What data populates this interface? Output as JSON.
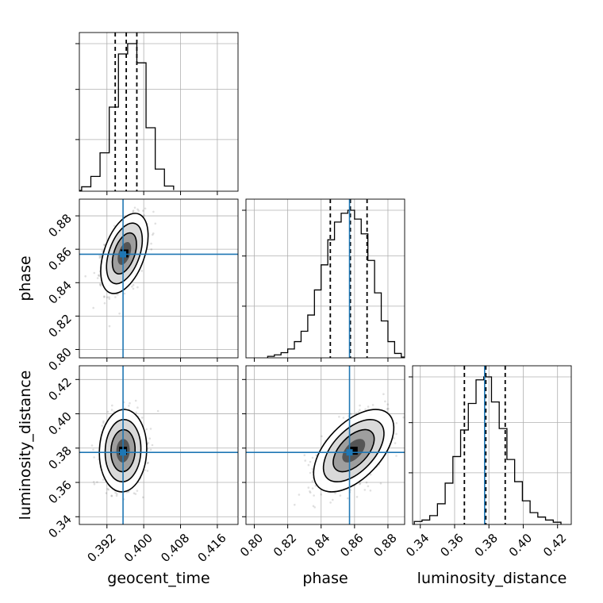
{
  "chart_data": {
    "type": "corner",
    "grid": true,
    "truth_color": "#1f77b4",
    "parameters": [
      {
        "name": "geocent_time",
        "label": "geocent_time",
        "range": [
          0.386,
          0.4205
        ],
        "ticks": [
          0.392,
          0.4,
          0.408,
          0.416
        ],
        "tick_labels": [
          "0.392",
          "0.400",
          "0.408",
          "0.416"
        ],
        "truth": 0.3955,
        "quantiles": [
          0.3938,
          0.3962,
          0.3985
        ],
        "hist_bins": [
          0.3845,
          0.3865,
          0.3885,
          0.3905,
          0.3925,
          0.3945,
          0.3965,
          0.3985,
          0.4005,
          0.4025,
          0.4045,
          0.4065
        ],
        "hist_counts": [
          0.005,
          0.03,
          0.1,
          0.26,
          0.57,
          0.93,
          1.0,
          0.87,
          0.43,
          0.15,
          0.035,
          0.008
        ]
      },
      {
        "name": "phase",
        "label": "phase",
        "range": [
          0.795,
          0.89
        ],
        "ticks": [
          0.8,
          0.82,
          0.84,
          0.86,
          0.88
        ],
        "tick_labels": [
          "0.80",
          "0.82",
          "0.84",
          "0.86",
          "0.88"
        ],
        "truth": 0.857,
        "quantiles": [
          0.8455,
          0.8575,
          0.8675
        ],
        "hist_bins": [
          0.808,
          0.812,
          0.816,
          0.82,
          0.824,
          0.828,
          0.832,
          0.836,
          0.84,
          0.844,
          0.848,
          0.852,
          0.856,
          0.86,
          0.864,
          0.868,
          0.872,
          0.876,
          0.88,
          0.884,
          0.888,
          0.892
        ],
        "hist_counts": [
          0.01,
          0.02,
          0.035,
          0.06,
          0.11,
          0.18,
          0.29,
          0.46,
          0.63,
          0.8,
          0.92,
          0.98,
          1.0,
          0.94,
          0.84,
          0.66,
          0.44,
          0.25,
          0.11,
          0.03,
          0.005
        ],
        "y_ticks": [
          0.8,
          0.82,
          0.84,
          0.86,
          0.88
        ],
        "y_tick_labels": [
          "0.80",
          "0.82",
          "0.84",
          "0.86",
          "0.88"
        ]
      },
      {
        "name": "luminosity_distance",
        "label": "luminosity_distance",
        "range": [
          0.3355,
          0.428
        ],
        "ticks": [
          0.34,
          0.36,
          0.38,
          0.4,
          0.42
        ],
        "tick_labels": [
          "0.34",
          "0.36",
          "0.38",
          "0.40",
          "0.42"
        ],
        "truth": 0.3775,
        "quantiles": [
          0.3657,
          0.3782,
          0.3895
        ],
        "hist_bins": [
          0.3365,
          0.341,
          0.3455,
          0.35,
          0.3545,
          0.359,
          0.3635,
          0.368,
          0.3725,
          0.377,
          0.3815,
          0.386,
          0.3905,
          0.395,
          0.3995,
          0.404,
          0.4085,
          0.413,
          0.4175,
          0.422
        ],
        "hist_counts": [
          0.02,
          0.03,
          0.06,
          0.14,
          0.28,
          0.46,
          0.64,
          0.82,
          0.98,
          1.0,
          0.83,
          0.65,
          0.44,
          0.29,
          0.16,
          0.08,
          0.05,
          0.03,
          0.015
        ]
      }
    ],
    "hist_yticks": [
      0.35,
      0.69,
      1.0
    ],
    "pairs": [
      {
        "x": "geocent_time",
        "y": "phase",
        "mean": [
          0.3958,
          0.8575
        ],
        "sd": [
          0.0021,
          0.0098
        ],
        "rho": 0.45
      },
      {
        "x": "geocent_time",
        "y": "luminosity_distance",
        "mean": [
          0.3955,
          0.3785
        ],
        "sd": [
          0.0021,
          0.0098
        ],
        "rho": 0.05
      },
      {
        "x": "phase",
        "y": "luminosity_distance",
        "mean": [
          0.8595,
          0.3785
        ],
        "sd": [
          0.0098,
          0.0098
        ],
        "rho": 0.55
      }
    ]
  }
}
